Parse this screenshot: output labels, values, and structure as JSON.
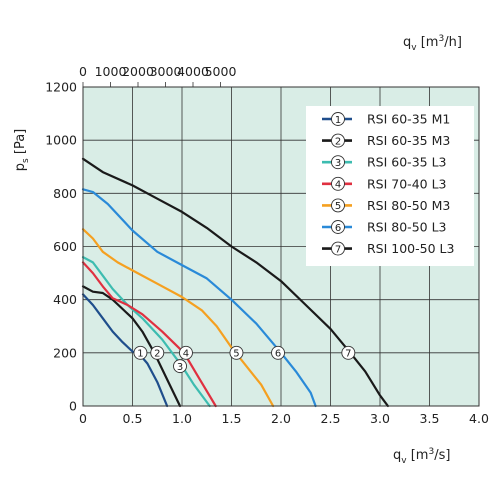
{
  "chart_data": {
    "type": "line",
    "xlabel_base": "q",
    "xlabel_sub": "v",
    "xlabel_unit_pre": " [m",
    "xlabel_unit_sup": "3",
    "xlabel_unit_post": "/s]",
    "x2label_base": "q",
    "x2label_sub": "v",
    "x2label_unit_pre": " [m",
    "x2label_unit_sup": "3",
    "x2label_unit_post": "/h]",
    "ylabel_base": "p",
    "ylabel_sub": "s",
    "ylabel_unit": " [Pa]",
    "xlim": [
      0,
      4
    ],
    "ylim": [
      0,
      1200
    ],
    "x2lim": [
      0,
      14400
    ],
    "x_ticks": [
      "0",
      "0.5",
      "1.0",
      "1.5",
      "2.0",
      "2.5",
      "3.0",
      "3.5",
      "4.0"
    ],
    "x2_ticks": [
      "0",
      "1000",
      "2000",
      "3000",
      "4000",
      "5000"
    ],
    "y_ticks": [
      "0",
      "200",
      "400",
      "600",
      "800",
      "1000",
      "1200"
    ],
    "grid": true,
    "legend_position": "top-right",
    "background_color": "#d9ede6",
    "series": [
      {
        "marker": "1",
        "name": "RSI 60-35 M1",
        "color": "#1f4e8c",
        "x": [
          0,
          0.1,
          0.2,
          0.3,
          0.4,
          0.5,
          0.57,
          0.65,
          0.75,
          0.85
        ],
        "y": [
          420,
          380,
          330,
          280,
          240,
          205,
          195,
          160,
          90,
          0
        ]
      },
      {
        "marker": "2",
        "name": "RSI 60-35 M3",
        "color": "#1a1a1a",
        "x": [
          0,
          0.1,
          0.2,
          0.3,
          0.4,
          0.5,
          0.6,
          0.72,
          0.85,
          0.98
        ],
        "y": [
          450,
          430,
          425,
          400,
          365,
          330,
          280,
          200,
          100,
          0
        ]
      },
      {
        "marker": "3",
        "name": "RSI 60-35 L3",
        "color": "#3dbcb0",
        "x": [
          0,
          0.1,
          0.2,
          0.3,
          0.45,
          0.6,
          0.8,
          1.0,
          1.12,
          1.28
        ],
        "y": [
          560,
          540,
          490,
          440,
          380,
          330,
          250,
          150,
          80,
          0
        ]
      },
      {
        "marker": "4",
        "name": "RSI 70-40 L3",
        "color": "#e03040",
        "x": [
          0,
          0.1,
          0.2,
          0.3,
          0.45,
          0.6,
          0.8,
          1.02,
          1.18,
          1.34
        ],
        "y": [
          540,
          500,
          450,
          405,
          380,
          345,
          280,
          200,
          100,
          0
        ]
      },
      {
        "marker": "5",
        "name": "RSI 80-50 M3",
        "color": "#f5a020",
        "x": [
          0,
          0.1,
          0.2,
          0.35,
          0.5,
          0.75,
          1.0,
          1.2,
          1.35,
          1.5,
          1.65,
          1.8,
          1.92
        ],
        "y": [
          665,
          630,
          580,
          540,
          510,
          460,
          410,
          360,
          300,
          220,
          150,
          80,
          0
        ]
      },
      {
        "marker": "6",
        "name": "RSI 80-50 L3",
        "color": "#2a8ad8",
        "x": [
          0,
          0.1,
          0.25,
          0.5,
          0.75,
          1.0,
          1.25,
          1.5,
          1.75,
          2.0,
          2.15,
          2.3,
          2.35
        ],
        "y": [
          815,
          805,
          760,
          660,
          580,
          530,
          480,
          400,
          310,
          200,
          130,
          50,
          0
        ]
      },
      {
        "marker": "7",
        "name": "RSI 100-50 L3",
        "color": "#1a1a1a",
        "x": [
          0,
          0.2,
          0.5,
          0.75,
          1.0,
          1.25,
          1.5,
          1.75,
          2.0,
          2.25,
          2.5,
          2.7,
          2.85,
          3.0,
          3.08
        ],
        "y": [
          930,
          880,
          830,
          780,
          730,
          670,
          600,
          540,
          470,
          380,
          290,
          200,
          130,
          40,
          0
        ]
      }
    ],
    "curve_labels": [
      {
        "text": "1",
        "x": 0.58,
        "y": 200
      },
      {
        "text": "2",
        "x": 0.75,
        "y": 200
      },
      {
        "text": "4",
        "x": 1.04,
        "y": 200
      },
      {
        "text": "3",
        "x": 0.98,
        "y": 150
      },
      {
        "text": "5",
        "x": 1.55,
        "y": 200
      },
      {
        "text": "6",
        "x": 1.97,
        "y": 200
      },
      {
        "text": "7",
        "x": 2.68,
        "y": 200
      }
    ]
  }
}
